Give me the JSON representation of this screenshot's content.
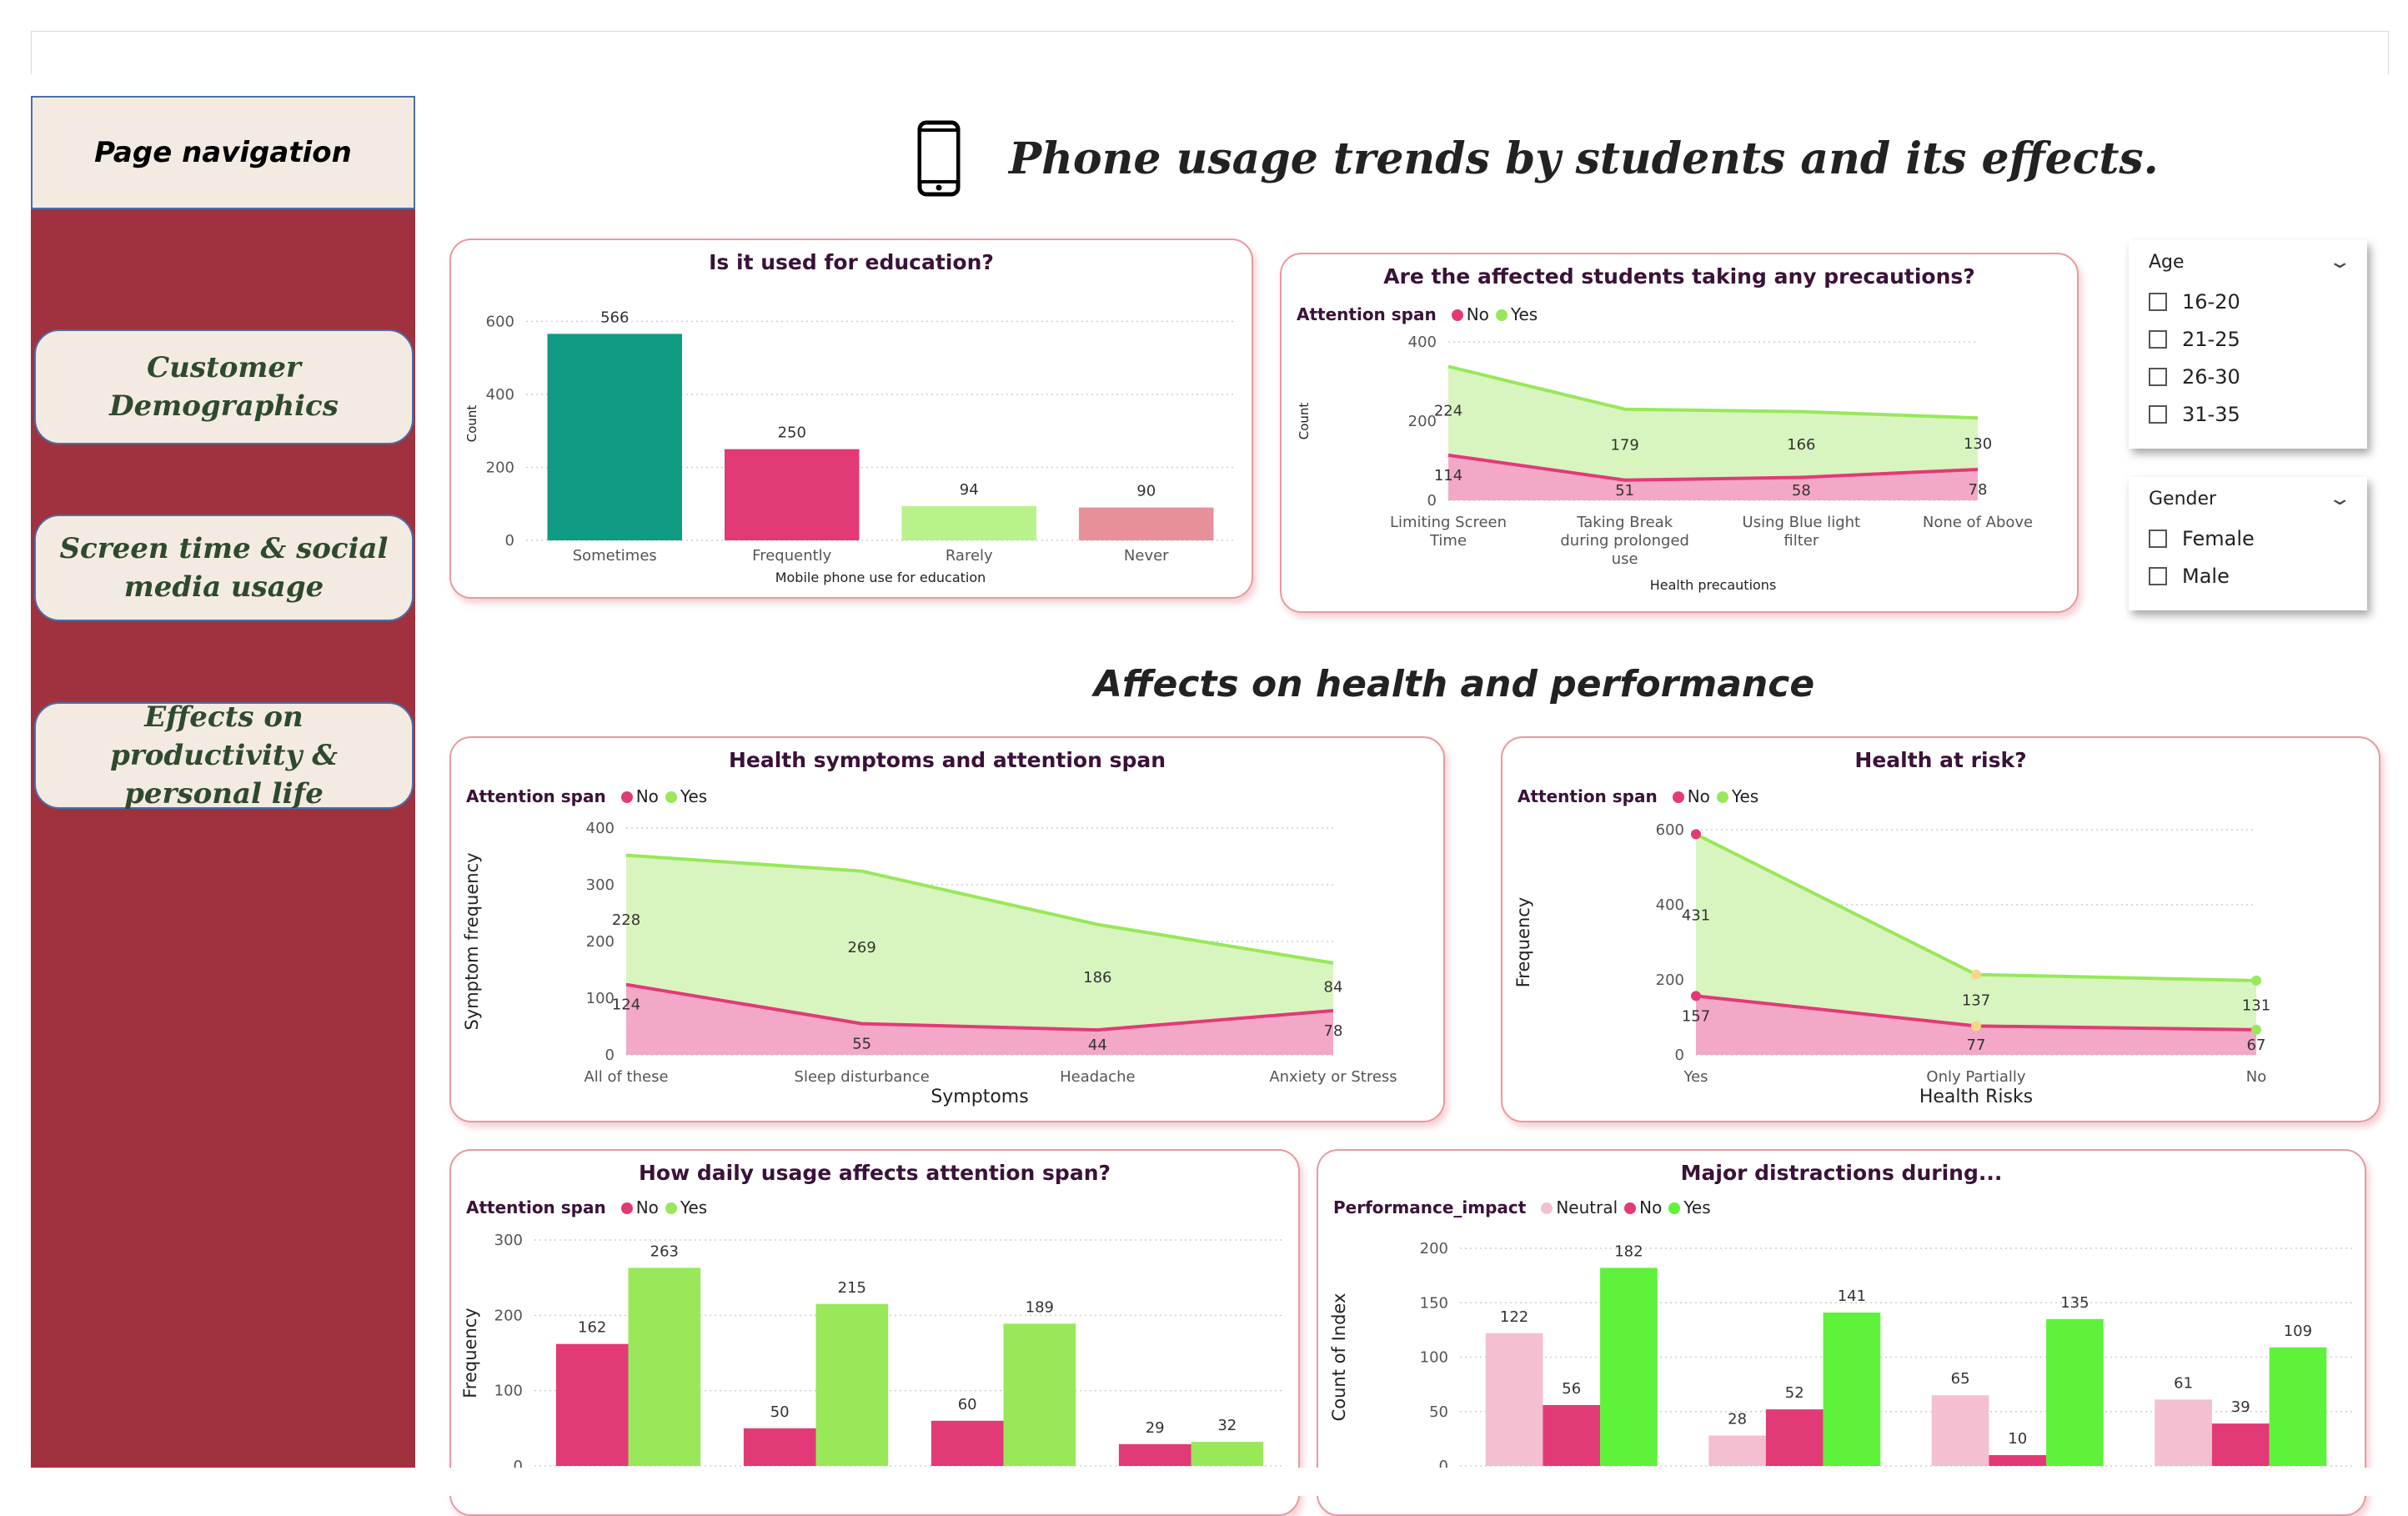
{
  "nav": {
    "header": "Page navigation",
    "items": [
      {
        "label": "Customer Demographics"
      },
      {
        "label": "Screen time & social media usage"
      },
      {
        "label": "Effects on productivity & personal life"
      }
    ]
  },
  "header": {
    "title": "Phone usage trends by students and its effects.",
    "icon": "mobile-phone-icon"
  },
  "section_title": "Affects on health and performance",
  "slicers": {
    "age": {
      "label": "Age",
      "options": [
        "16-20",
        "21-25",
        "26-30",
        "31-35"
      ]
    },
    "gender": {
      "label": "Gender",
      "options": [
        "Female",
        "Male"
      ]
    }
  },
  "colors": {
    "sidebar": "#a0313f",
    "nav_bg": "#f3ebe2",
    "no": "#e23a76",
    "yes": "#98e85a",
    "no_area": "#f2a8c6",
    "yes_area": "#d8f5bf",
    "neutral": "#f5bfd2",
    "yes_bright": "#5ef23a",
    "teal": "#0e9a83",
    "pink": "#e23a76",
    "light_green": "#b8f28a",
    "salmon": "#e8909a"
  },
  "chart_data": [
    {
      "id": "education",
      "type": "bar",
      "title": "Is it used for education?",
      "xlabel": "Mobile phone use for education",
      "ylabel": "Count",
      "categories": [
        "Sometimes",
        "Frequently",
        "Rarely",
        "Never"
      ],
      "values": [
        566,
        250,
        94,
        90
      ],
      "yticks": [
        "0",
        "200",
        "400",
        "600"
      ],
      "ylim": [
        0,
        640
      ],
      "bar_colors": [
        "#0e9a83",
        "#e23a76",
        "#b8f28a",
        "#e8909a"
      ]
    },
    {
      "id": "precautions",
      "type": "area",
      "title": "Are the affected students taking any precautions?",
      "legend_title": "Attention span",
      "xlabel": "Health precautions",
      "ylabel": "Count",
      "categories": [
        "Limiting Screen Time",
        "Taking Break during prolonged use",
        "Using Blue light filter",
        "None of Above"
      ],
      "series": [
        {
          "name": "No",
          "values": [
            114,
            51,
            58,
            78
          ]
        },
        {
          "name": "Yes",
          "values": [
            224,
            179,
            166,
            130
          ]
        }
      ],
      "yticks": [
        "0",
        "200",
        "400"
      ],
      "ylim": [
        0,
        400
      ]
    },
    {
      "id": "symptoms",
      "type": "area",
      "title": "Health symptoms and attention span",
      "legend_title": "Attention span",
      "xlabel": "Symptoms",
      "ylabel": "Symptom frequency",
      "categories": [
        "All of these",
        "Sleep disturbance",
        "Headache",
        "Anxiety or Stress"
      ],
      "series": [
        {
          "name": "No",
          "values": [
            124,
            55,
            44,
            78
          ]
        },
        {
          "name": "Yes",
          "values": [
            228,
            269,
            186,
            84
          ]
        }
      ],
      "yticks": [
        "0",
        "100",
        "200",
        "300",
        "400"
      ],
      "ylim": [
        0,
        400
      ]
    },
    {
      "id": "risk",
      "type": "area",
      "title": "Health at risk?",
      "legend_title": "Attention span",
      "xlabel": "Health Risks",
      "ylabel": "Frequency",
      "categories": [
        "Yes",
        "Only Partially",
        "No"
      ],
      "series": [
        {
          "name": "No",
          "values": [
            157,
            77,
            67
          ]
        },
        {
          "name": "Yes",
          "values": [
            431,
            137,
            131
          ]
        }
      ],
      "yticks": [
        "0",
        "200",
        "400",
        "600"
      ],
      "ylim": [
        0,
        600
      ]
    },
    {
      "id": "daily",
      "type": "bar",
      "title": "How daily usage affects attention span?",
      "legend_title": "Attention span",
      "ylabel": "Frequency",
      "series": [
        {
          "name": "No",
          "values": [
            162,
            50,
            60,
            29
          ]
        },
        {
          "name": "Yes",
          "values": [
            263,
            215,
            189,
            32
          ]
        }
      ],
      "yticks": [
        "0",
        "100",
        "200",
        "300"
      ],
      "ylim": [
        0,
        300
      ]
    },
    {
      "id": "distractions",
      "type": "bar",
      "title": "Major distractions during...",
      "legend_title": "Performance_impact",
      "ylabel": "Count of Index",
      "series": [
        {
          "name": "Neutral",
          "values": [
            122,
            28,
            65,
            61
          ]
        },
        {
          "name": "No",
          "values": [
            56,
            52,
            10,
            39
          ]
        },
        {
          "name": "Yes",
          "values": [
            182,
            141,
            135,
            109
          ]
        }
      ],
      "yticks": [
        "0",
        "50",
        "100",
        "150",
        "200"
      ],
      "ylim": [
        0,
        200
      ]
    }
  ]
}
